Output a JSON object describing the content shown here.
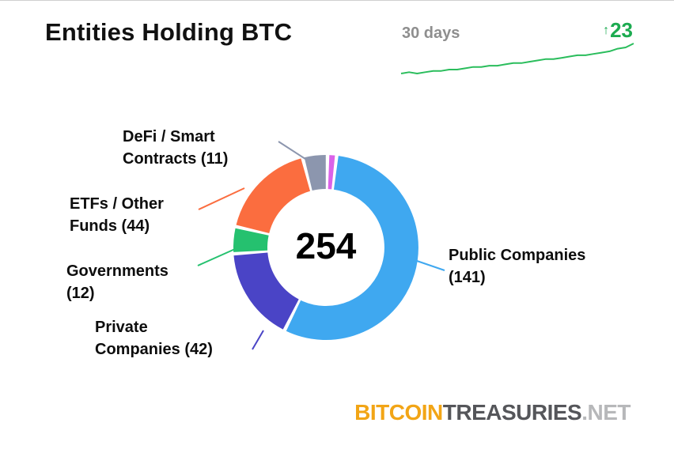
{
  "page": {
    "background": "#ffffff"
  },
  "header": {
    "title": "Entities Holding BTC"
  },
  "trend": {
    "range_label": "30 days",
    "arrow": "↑",
    "change_label": "23",
    "color": "#1cab50",
    "label_color": "#8e8e8e"
  },
  "chart_data": [
    {
      "type": "pie",
      "subtype": "donut",
      "title": "Entities Holding BTC",
      "total": 254,
      "total_label": "254",
      "segments": [
        {
          "key": "unlabeled",
          "label": "",
          "value": 4,
          "color": "#da62e8"
        },
        {
          "key": "public-companies",
          "label": "Public Companies (141)",
          "value": 141,
          "color": "#3fa8f0"
        },
        {
          "key": "private-companies",
          "label": "Private Companies (42)",
          "value": 42,
          "color": "#4a44c6"
        },
        {
          "key": "governments",
          "label": "Governments (12)",
          "value": 12,
          "color": "#25c16f"
        },
        {
          "key": "etfs-other-funds",
          "label": "ETFs / Other Funds (44)",
          "value": 44,
          "color": "#fb6d3f"
        },
        {
          "key": "defi-smart-contracts",
          "label": "DeFi / Smart Contracts (11)",
          "value": 11,
          "color": "#8c96ae"
        }
      ]
    },
    {
      "type": "line",
      "title": "30 days",
      "change": 23,
      "values": [
        231,
        232,
        231,
        232,
        233,
        233,
        234,
        234,
        235,
        236,
        236,
        237,
        237,
        238,
        239,
        239,
        240,
        241,
        242,
        242,
        243,
        244,
        245,
        245,
        246,
        247,
        248,
        250,
        251,
        254
      ],
      "color": "#2abd5c"
    }
  ],
  "footer": {
    "brand_parts": [
      {
        "text": "BITCOIN",
        "color": "#f2a516"
      },
      {
        "text": "TREASURIES",
        "color": "#55565a"
      },
      {
        "text": ".NET",
        "color": "#b7b8ba"
      }
    ]
  }
}
